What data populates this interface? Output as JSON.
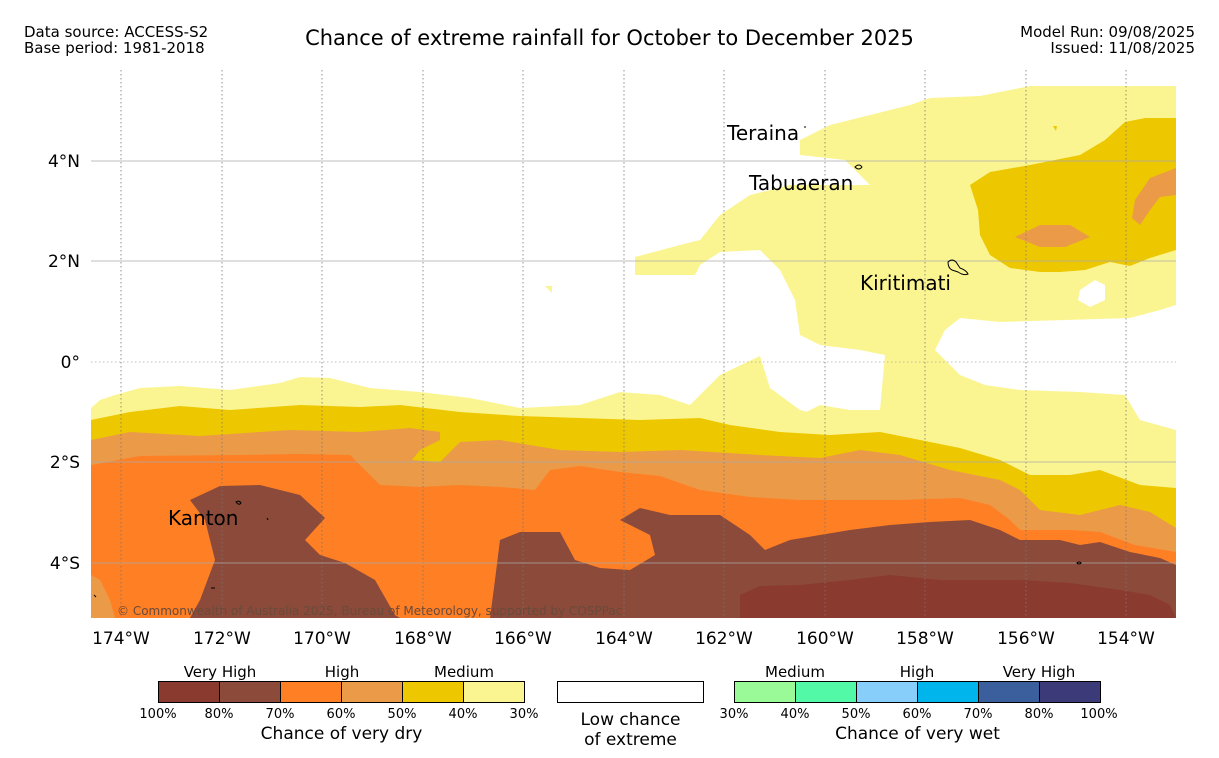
{
  "header": {
    "left": [
      "Data source: ACCESS-S2",
      "Base period: 1981-2018"
    ],
    "right": [
      "Model Run: 09/08/2025",
      "Issued: 11/08/2025"
    ],
    "title": "Chance of extreme rainfall for October to December 2025"
  },
  "map": {
    "x_ticks": [
      "174°W",
      "172°W",
      "170°W",
      "168°W",
      "166°W",
      "164°W",
      "162°W",
      "160°W",
      "158°W",
      "156°W",
      "154°W"
    ],
    "y_ticks": [
      "4°N",
      "2°N",
      "0°",
      "2°S",
      "4°S"
    ],
    "places": [
      "Teraina",
      "Tabuaeran",
      "Kiritimati",
      "Kanton"
    ],
    "copyright": "© Commonwealth of Australia 2025, Bureau of Meteorology, supported by COSPPac",
    "colors": {
      "dry_100_80": "#8B3A2F",
      "dry_80_70": "#8B4A3A",
      "dry_70_60": "#FF7F24",
      "dry_60_50": "#EB9A48",
      "dry_50_40": "#EDC800",
      "dry_40_30": "#FBF591",
      "low": "#FFFFFF"
    }
  },
  "legend": {
    "dry": {
      "categories": [
        "Very High",
        "High",
        "Medium"
      ],
      "ticks": [
        "100%",
        "80%",
        "70%",
        "60%",
        "50%",
        "40%",
        "30%"
      ],
      "colors": [
        "#8B3A2F",
        "#8B4A3A",
        "#FF7F24",
        "#EB9A48",
        "#EDC800",
        "#FBF591"
      ],
      "caption": "Chance of very dry"
    },
    "low": {
      "caption_line1": "Low chance",
      "caption_line2": "of extreme"
    },
    "wet": {
      "categories": [
        "Medium",
        "High",
        "Very High"
      ],
      "ticks": [
        "30%",
        "40%",
        "50%",
        "60%",
        "70%",
        "80%",
        "100%"
      ],
      "colors": [
        "#9AFA98",
        "#52FAA8",
        "#87CEFA",
        "#00B4EC",
        "#3A5F9C",
        "#3D3A7A"
      ],
      "caption": "Chance of very wet"
    }
  }
}
